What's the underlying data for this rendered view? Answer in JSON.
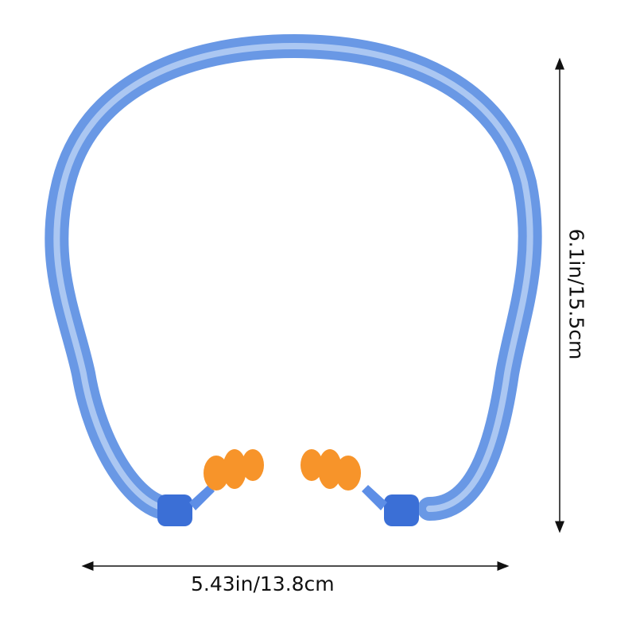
{
  "product": {
    "band_color": "#4f86e0",
    "earplug_color": "#f7942a",
    "icons": [
      "headband-icon",
      "earplug-left-icon",
      "earplug-right-icon"
    ]
  },
  "dimensions": {
    "width_label": "5.43in/13.8cm",
    "height_label": "6.1in/15.5cm"
  }
}
